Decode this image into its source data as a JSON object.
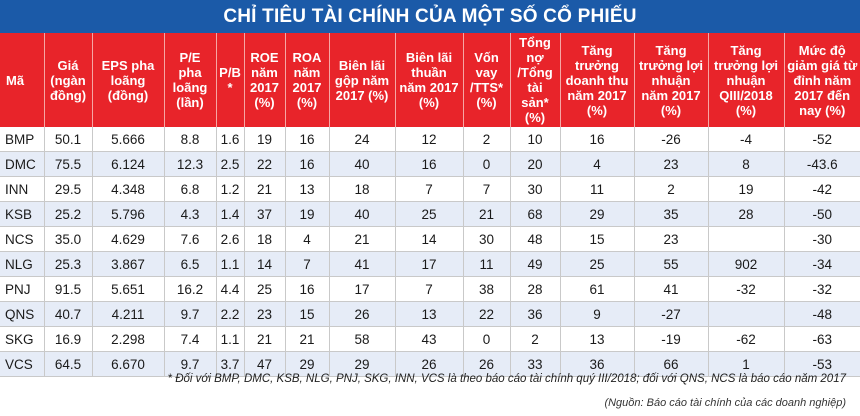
{
  "title": "CHỈ TIÊU TÀI CHÍNH CỦA MỘT SỐ CỔ PHIẾU",
  "headers": [
    "Mã",
    "Giá (ngàn đồng)",
    "EPS pha loãng (đồng)",
    "P/E pha loãng (lần)",
    "P/B *",
    "ROE năm 2017 (%)",
    "ROA năm 2017 (%)",
    "Biên lãi gộp năm 2017 (%)",
    "Biên lãi thuần năm 2017 (%)",
    "Vốn vay /TTS* (%)",
    "Tổng nợ /Tổng tài sản* (%)",
    "Tăng trưởng doanh thu năm 2017 (%)",
    "Tăng trưởng lợi nhuận năm 2017 (%)",
    "Tăng trưởng lợi nhuận QIII/2018 (%)",
    "Mức độ giảm giá từ đỉnh năm 2017 đến nay (%)"
  ],
  "rows": [
    [
      "BMP",
      "50.1",
      "5.666",
      "8.8",
      "1.6",
      "19",
      "16",
      "24",
      "12",
      "2",
      "10",
      "16",
      "-26",
      "-4",
      "-52"
    ],
    [
      "DMC",
      "75.5",
      "6.124",
      "12.3",
      "2.5",
      "22",
      "16",
      "40",
      "16",
      "0",
      "20",
      "4",
      "23",
      "8",
      "-43.6"
    ],
    [
      "INN",
      "29.5",
      "4.348",
      "6.8",
      "1.2",
      "21",
      "13",
      "18",
      "7",
      "7",
      "30",
      "11",
      "2",
      "19",
      "-42"
    ],
    [
      "KSB",
      "25.2",
      "5.796",
      "4.3",
      "1.4",
      "37",
      "19",
      "40",
      "25",
      "21",
      "68",
      "29",
      "35",
      "28",
      "-50"
    ],
    [
      "NCS",
      "35.0",
      "4.629",
      "7.6",
      "2.6",
      "18",
      "4",
      "21",
      "14",
      "30",
      "48",
      "15",
      "23",
      "",
      "-30"
    ],
    [
      "NLG",
      "25.3",
      "3.867",
      "6.5",
      "1.1",
      "14",
      "7",
      "41",
      "17",
      "11",
      "49",
      "25",
      "55",
      "902",
      "-34"
    ],
    [
      "PNJ",
      "91.5",
      "5.651",
      "16.2",
      "4.4",
      "25",
      "16",
      "17",
      "7",
      "38",
      "28",
      "61",
      "41",
      "-32",
      "-32"
    ],
    [
      "QNS",
      "40.7",
      "4.211",
      "9.7",
      "2.2",
      "23",
      "15",
      "26",
      "13",
      "22",
      "36",
      "9",
      "-27",
      "",
      "-48"
    ],
    [
      "SKG",
      "16.9",
      "2.298",
      "7.4",
      "1.1",
      "21",
      "21",
      "58",
      "43",
      "0",
      "2",
      "13",
      "-19",
      "-62",
      "-63"
    ],
    [
      "VCS",
      "64.5",
      "6.670",
      "9.7",
      "3.7",
      "47",
      "29",
      "29",
      "26",
      "26",
      "33",
      "36",
      "66",
      "1",
      "-53"
    ]
  ],
  "footnote": "* Đối với BMP, DMC, KSB, NLG, PNJ, SKG, INN, VCS là theo báo cáo tài chính quý III/2018; đối với QNS, NCS là báo cáo năm 2017",
  "source": "(Nguồn: Báo cáo tài chính của các doanh nghiệp)"
}
